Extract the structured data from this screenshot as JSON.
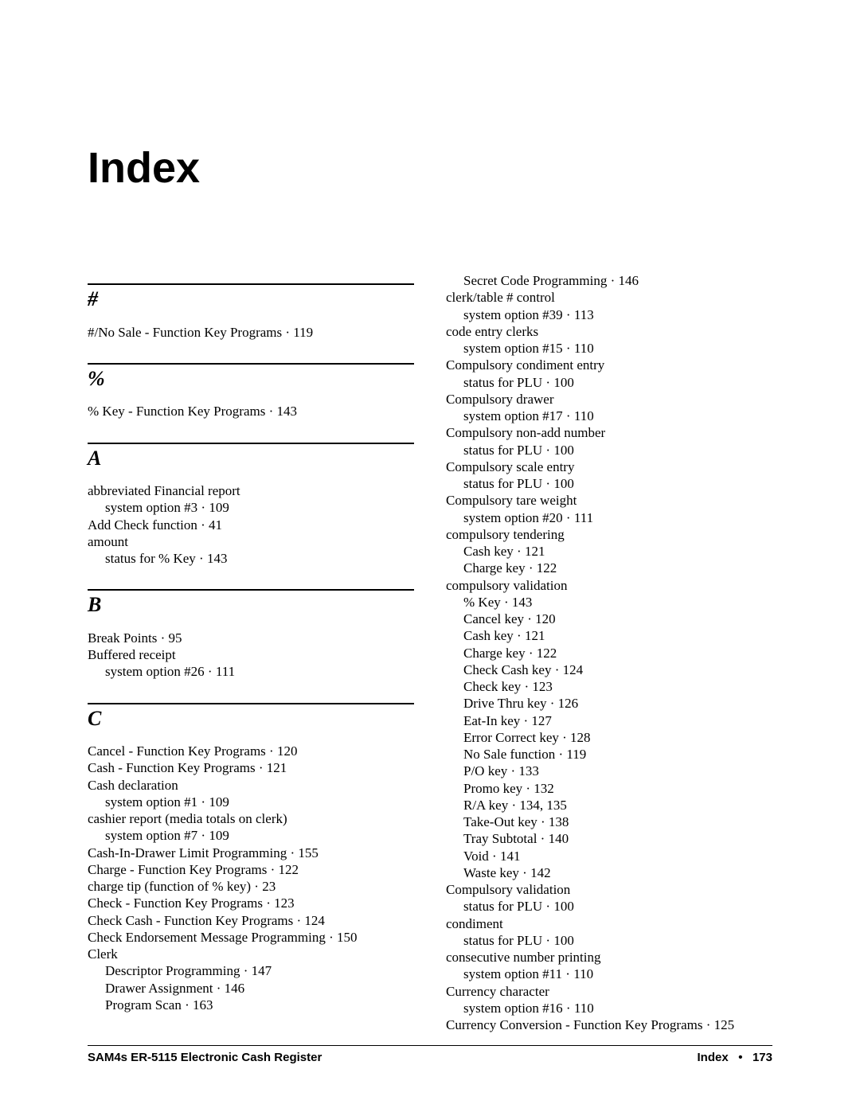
{
  "title": "Index",
  "sections": [
    {
      "letter": "#",
      "entries": [
        {
          "text": "#/No Sale - Function Key Programs ·   119",
          "indent": 0
        }
      ]
    },
    {
      "letter": "%",
      "entries": [
        {
          "text": "% Key - Function Key Programs ·   143",
          "indent": 0
        }
      ]
    },
    {
      "letter": "A",
      "entries": [
        {
          "text": "abbreviated Financial report",
          "indent": 0
        },
        {
          "text": "system option #3 ·   109",
          "indent": 1
        },
        {
          "text": "Add Check function ·   41",
          "indent": 0
        },
        {
          "text": "amount",
          "indent": 0
        },
        {
          "text": "status for % Key ·   143",
          "indent": 1
        }
      ]
    },
    {
      "letter": "B",
      "entries": [
        {
          "text": "Break Points ·   95",
          "indent": 0
        },
        {
          "text": "Buffered receipt",
          "indent": 0
        },
        {
          "text": "system option #26 ·   111",
          "indent": 1
        }
      ]
    },
    {
      "letter": "C",
      "entries": [
        {
          "text": "Cancel - Function Key Programs ·   120",
          "indent": 0
        },
        {
          "text": "Cash - Function Key Programs ·   121",
          "indent": 0
        },
        {
          "text": "Cash declaration",
          "indent": 0
        },
        {
          "text": "system option #1 ·   109",
          "indent": 1
        },
        {
          "text": "cashier report (media totals on clerk)",
          "indent": 0
        },
        {
          "text": "system option #7 ·   109",
          "indent": 1
        },
        {
          "text": "Cash-In-Drawer Limit Programming ·   155",
          "indent": 0
        },
        {
          "text": "Charge - Function Key Programs ·   122",
          "indent": 0
        },
        {
          "text": "charge tip (function of % key) ·   23",
          "indent": 0
        },
        {
          "text": "Check - Function Key Programs ·   123",
          "indent": 0
        },
        {
          "text": "Check Cash - Function Key Programs ·   124",
          "indent": 0
        },
        {
          "text": "Check Endorsement Message Programming ·   150",
          "indent": 0
        },
        {
          "text": "Clerk",
          "indent": 0
        },
        {
          "text": "Descriptor Programming ·   147",
          "indent": 1
        },
        {
          "text": "Drawer Assignment ·   146",
          "indent": 1
        },
        {
          "text": "Program Scan ·   163",
          "indent": 1
        }
      ]
    }
  ],
  "col2_entries": [
    {
      "text": "Secret Code Programming ·   146",
      "indent": 1
    },
    {
      "text": "clerk/table # control",
      "indent": 0
    },
    {
      "text": "system option #39 ·   113",
      "indent": 1
    },
    {
      "text": "code entry clerks",
      "indent": 0
    },
    {
      "text": "system option #15 ·   110",
      "indent": 1
    },
    {
      "text": "Compulsory condiment entry",
      "indent": 0
    },
    {
      "text": "status for PLU ·   100",
      "indent": 1
    },
    {
      "text": "Compulsory drawer",
      "indent": 0
    },
    {
      "text": "system option #17 ·   110",
      "indent": 1
    },
    {
      "text": "Compulsory non-add number",
      "indent": 0
    },
    {
      "text": "status for PLU ·   100",
      "indent": 1
    },
    {
      "text": "Compulsory scale entry",
      "indent": 0
    },
    {
      "text": "status for PLU ·   100",
      "indent": 1
    },
    {
      "text": "Compulsory tare weight",
      "indent": 0
    },
    {
      "text": "system option #20 ·   111",
      "indent": 1
    },
    {
      "text": "compulsory tendering",
      "indent": 0
    },
    {
      "text": "Cash key ·   121",
      "indent": 1
    },
    {
      "text": "Charge key ·   122",
      "indent": 1
    },
    {
      "text": "compulsory validation",
      "indent": 0
    },
    {
      "text": "% Key ·   143",
      "indent": 1
    },
    {
      "text": "Cancel key ·   120",
      "indent": 1
    },
    {
      "text": "Cash key ·   121",
      "indent": 1
    },
    {
      "text": "Charge key ·   122",
      "indent": 1
    },
    {
      "text": "Check Cash key ·   124",
      "indent": 1
    },
    {
      "text": "Check key ·   123",
      "indent": 1
    },
    {
      "text": "Drive Thru key ·   126",
      "indent": 1
    },
    {
      "text": "Eat-In key ·   127",
      "indent": 1
    },
    {
      "text": "Error Correct key ·   128",
      "indent": 1
    },
    {
      "text": "No Sale function ·   119",
      "indent": 1
    },
    {
      "text": "P/O key ·   133",
      "indent": 1
    },
    {
      "text": "Promo key ·   132",
      "indent": 1
    },
    {
      "text": "R/A key ·   134, 135",
      "indent": 1
    },
    {
      "text": "Take-Out key ·   138",
      "indent": 1
    },
    {
      "text": "Tray Subtotal ·   140",
      "indent": 1
    },
    {
      "text": "Void ·   141",
      "indent": 1
    },
    {
      "text": "Waste key ·   142",
      "indent": 1
    },
    {
      "text": "Compulsory validation",
      "indent": 0
    },
    {
      "text": "status for PLU ·   100",
      "indent": 1
    },
    {
      "text": "condiment",
      "indent": 0
    },
    {
      "text": "status for PLU ·   100",
      "indent": 1
    },
    {
      "text": "consecutive number printing",
      "indent": 0
    },
    {
      "text": "system option #11 ·   110",
      "indent": 1
    },
    {
      "text": "Currency character",
      "indent": 0
    },
    {
      "text": "system option #16 ·   110",
      "indent": 1
    },
    {
      "text": "Currency Conversion - Function Key Programs ·   125",
      "indent": 0
    }
  ],
  "footer": {
    "left": "SAM4s ER-5115 Electronic Cash Register",
    "right_label": "Index",
    "bullet": "•",
    "page": "173"
  }
}
